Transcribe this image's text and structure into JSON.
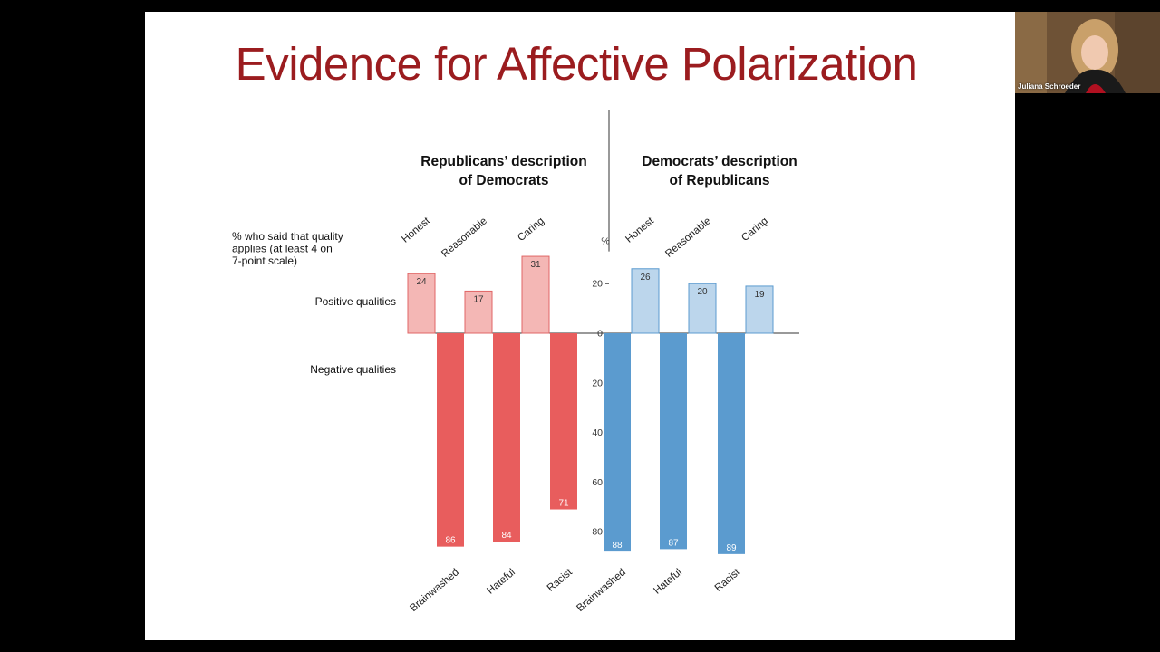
{
  "slide": {
    "title": "Evidence for Affective Polarization"
  },
  "participant": {
    "name": "Juliana Schroeder"
  },
  "chart_data": {
    "type": "bar",
    "ylabel_lines": [
      "% who said that quality",
      "applies (at least 4 on",
      "7-point scale)"
    ],
    "axis_unit": "%",
    "row_labels": {
      "positive": "Positive qualities",
      "negative": "Negative qualities"
    },
    "yticks": [
      0,
      20,
      40,
      60,
      80
    ],
    "ylim": [
      -30,
      90
    ],
    "panels": [
      {
        "title_lines": [
          "Republicans’ description",
          "of Democrats"
        ],
        "positive_color": "#f4b7b5",
        "negative_color": "#e85d5d",
        "positive": {
          "categories": [
            "Honest",
            "Reasonable",
            "Caring"
          ],
          "values": [
            24,
            17,
            31
          ]
        },
        "negative": {
          "categories": [
            "Brainwashed",
            "Hateful",
            "Racist"
          ],
          "values": [
            86,
            84,
            71
          ]
        }
      },
      {
        "title_lines": [
          "Democrats’ description",
          "of Republicans"
        ],
        "positive_color": "#bcd6ec",
        "negative_color": "#5b9bcf",
        "positive": {
          "categories": [
            "Honest",
            "Reasonable",
            "Caring"
          ],
          "values": [
            26,
            20,
            19
          ]
        },
        "negative": {
          "categories": [
            "Brainwashed",
            "Hateful",
            "Racist"
          ],
          "values": [
            88,
            87,
            89
          ]
        }
      }
    ]
  }
}
